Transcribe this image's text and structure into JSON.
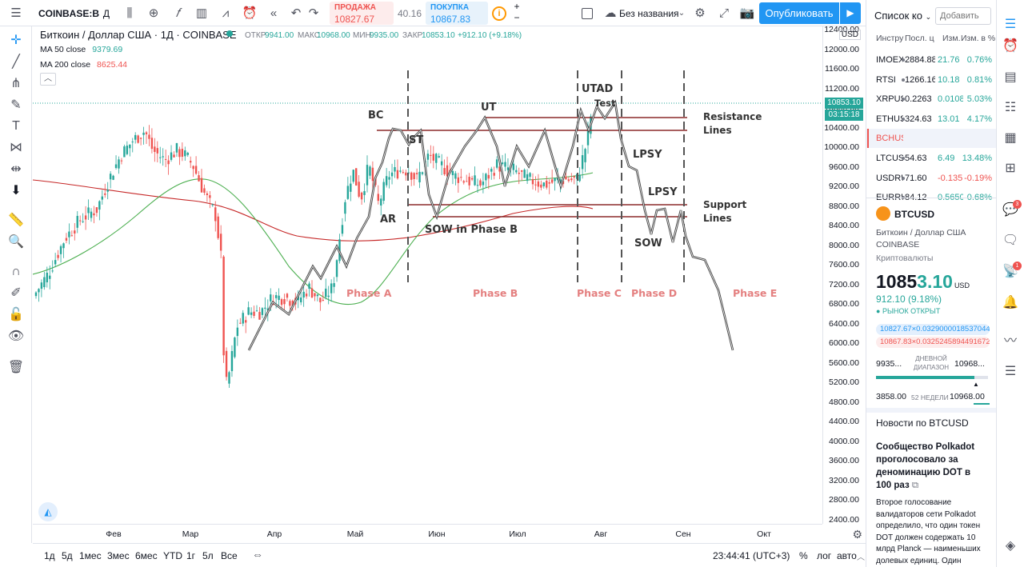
{
  "topbar": {
    "symbol": "COINBASE:B",
    "interval": "Д",
    "sell_label": "ПРОДАЖА",
    "sell_value": "10827.67",
    "spread": "40.16",
    "buy_label": "ПОКУПКА",
    "buy_value": "10867.83",
    "layout_name": "Без названия",
    "publish_label": "Опубликовать"
  },
  "legend": {
    "title": "Биткоин / Доллар США · 1Д · COINBASE",
    "open_label": "ОТКР",
    "open": "9941.00",
    "high_label": "МАКС",
    "high": "10968.00",
    "low_label": "МИН",
    "low": "9935.00",
    "close_label": "ЗАКР",
    "close": "10853.10",
    "change": "+912.10 (+9.18%)",
    "ma50_label": "MA 50 close",
    "ma50_value": "9379.69",
    "ma200_label": "MA 200 close",
    "ma200_value": "8625.44"
  },
  "price_axis": {
    "ticks": [
      "12400.00",
      "12000.00",
      "11600.00",
      "11200.00",
      "10800.00",
      "10400.00",
      "10000.00",
      "9600.00",
      "9200.00",
      "8800.00",
      "8400.00",
      "8000.00",
      "7600.00",
      "7200.00",
      "6800.00",
      "6400.00",
      "6000.00",
      "5600.00",
      "5200.00",
      "4800.00",
      "4400.00",
      "4000.00",
      "3600.00",
      "3200.00",
      "2800.00",
      "2400.00"
    ],
    "currency": "USD",
    "last_price": "10853.10",
    "countdown": "03:15:18"
  },
  "time_axis": {
    "ticks": [
      "Фев",
      "Мар",
      "Апр",
      "Май",
      "Июн",
      "Июл",
      "Авг",
      "Сен",
      "Окт"
    ]
  },
  "annotations": {
    "labels": [
      "BC",
      "ST",
      "AR",
      "SOW in Phase B",
      "UT",
      "UTAD",
      "Test",
      "Resistance",
      "Lines",
      "LPSY",
      "LPSY",
      "Support",
      "Lines",
      "SOW"
    ],
    "phases": [
      "Phase A",
      "Phase B",
      "Phase C",
      "Phase D",
      "Phase E"
    ]
  },
  "bottombar": {
    "ranges": [
      "1д",
      "5д",
      "1мес",
      "3мес",
      "6мес",
      "YTD",
      "1г",
      "5л",
      "Все"
    ],
    "clock": "23:44:41 (UTC+3)",
    "percent": "%",
    "log": "лог",
    "auto": "авто"
  },
  "watchlist": {
    "title": "Список ко",
    "add_placeholder": "Добавить",
    "columns": [
      "Инстру",
      "Посл. ц",
      "Изм.",
      "Изм. в %"
    ],
    "rows": [
      {
        "sym": "IMOEX",
        "last": "2884.88",
        "chg": "21.76",
        "pct": "0.76%",
        "dir": "up"
      },
      {
        "sym": "RTSI",
        "last": "1266.16",
        "chg": "10.18",
        "pct": "0.81%",
        "dir": "up"
      },
      {
        "sym": "XRPUSD",
        "last": "0.2263",
        "chg": "0.0108",
        "pct": "5.03%",
        "dir": "up"
      },
      {
        "sym": "ETHUSD",
        "last": "324.63",
        "chg": "13.01",
        "pct": "4.17%",
        "dir": "up"
      },
      {
        "sym": "BCHUSD",
        "last": "",
        "chg": "",
        "pct": "",
        "dir": "flat"
      },
      {
        "sym": "LTCUSD",
        "last": "54.63",
        "chg": "6.49",
        "pct": "13.48%",
        "dir": "up"
      },
      {
        "sym": "USDRUB",
        "last": "71.60",
        "chg": "-0.135",
        "pct": "-0.19%",
        "dir": "down"
      },
      {
        "sym": "EURRUB",
        "last": "84.12",
        "chg": "0.5650",
        "pct": "0.68%",
        "dir": "up"
      }
    ]
  },
  "details": {
    "symbol": "BTCUSD",
    "name": "Биткоин / Доллар США",
    "exchange": "COINBASE",
    "category": "Криптовалюты",
    "price_main": "1085",
    "price_tail": "3.10",
    "currency": "USD",
    "change": "912.10 (9.18%)",
    "market_status": "РЫНОК ОТКРЫТ",
    "bid": "10827.67×0.03290000185370445",
    "ask": "10867.83×0.03252458944916725",
    "day_low": "9935...",
    "day_label_1": "ДНЕВНОЙ",
    "day_label_2": "ДИАПАЗОН",
    "day_high": "10968...",
    "year_low": "3858.00",
    "year_label": "52 НЕДЕЛИ",
    "year_high": "10968.00",
    "day_range_fill": 0.88
  },
  "news": {
    "header": "Новости по BTCUSD",
    "headline": "Сообщество Polkadot проголосовало за деноминацию DOT в 100 раз",
    "body": "Второе голосование валидаторов сети Polkadot определило, что один токен DOT должен содержать 10 млрд Planck — наименьших долевых единиц. Один"
  },
  "badges": {
    "chat": "3",
    "alerts": "1"
  },
  "colors": {
    "accent": "#2196f3",
    "up": "#26a69a",
    "down": "#ef5350",
    "ma50": "#4caf50",
    "ma200": "#c62828"
  }
}
